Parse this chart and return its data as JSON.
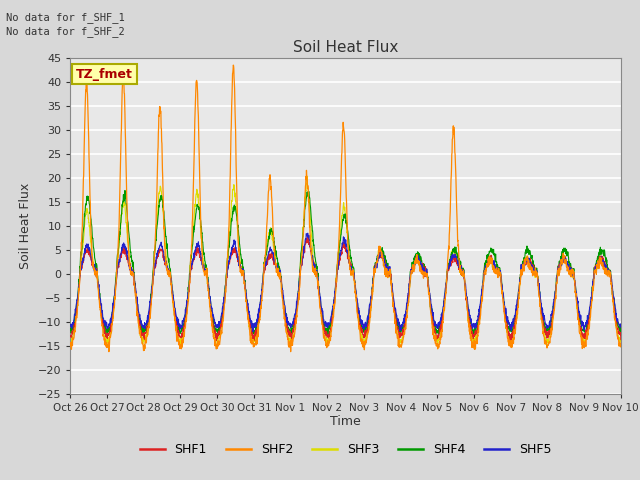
{
  "title": "Soil Heat Flux",
  "ylabel": "Soil Heat Flux",
  "xlabel": "Time",
  "annotations": [
    "No data for f_SHF_1",
    "No data for f_SHF_2"
  ],
  "tz_label": "TZ_fmet",
  "ylim": [
    -25,
    45
  ],
  "yticks": [
    -25,
    -20,
    -15,
    -10,
    -5,
    0,
    5,
    10,
    15,
    20,
    25,
    30,
    35,
    40,
    45
  ],
  "xtick_labels": [
    "Oct 26",
    "Oct 27",
    "Oct 28",
    "Oct 29",
    "Oct 30",
    "Oct 31",
    "Nov 1",
    "Nov 2",
    "Nov 3",
    "Nov 4",
    "Nov 5",
    "Nov 6",
    "Nov 7",
    "Nov 8",
    "Nov 9",
    "Nov 10"
  ],
  "legend_entries": [
    "SHF1",
    "SHF2",
    "SHF3",
    "SHF4",
    "SHF5"
  ],
  "legend_colors": [
    "#dd2222",
    "#ff8800",
    "#dddd00",
    "#009900",
    "#2222cc"
  ],
  "bg_color": "#d8d8d8",
  "plot_bg": "#e8e8e8",
  "grid_color": "#ffffff",
  "title_color": "#333333",
  "figsize": [
    6.4,
    4.8
  ],
  "dpi": 100
}
